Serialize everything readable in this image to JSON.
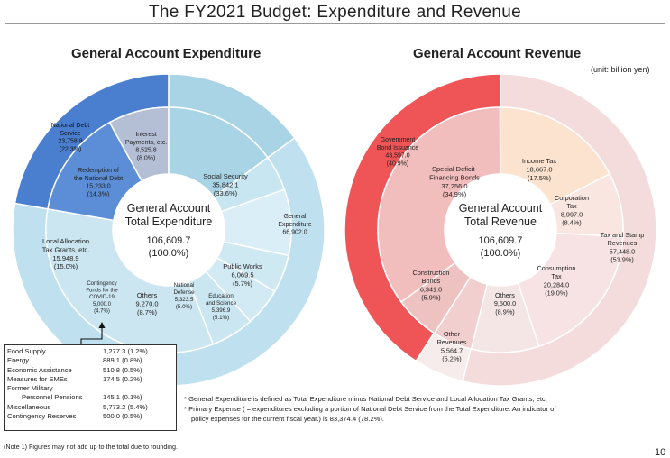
{
  "title": "The FY2021 Budget: Expenditure and Revenue",
  "unit": "(unit: billion yen)",
  "chart_data": [
    {
      "type": "pie",
      "title": "General Account Expenditure",
      "center_label": [
        "General Account",
        "Total Expenditure",
        "106,609.7",
        "(100.0%)"
      ],
      "outer": [
        {
          "label": "National Debt Service",
          "value": 23758.8
        },
        {
          "label": "Local Allocation Tax Grants, etc.",
          "value": 15948.9
        },
        {
          "label": "General Expenditure",
          "value": 66902.0
        }
      ],
      "inner": [
        {
          "label": "Redemption of the National Debt",
          "value": 15233.0
        },
        {
          "label": "Interest Payments, etc.",
          "value": 8525.8
        },
        {
          "label": "Local Allocation Tax Grants, etc.",
          "value": 15948.9
        },
        {
          "label": "Contingency Funds for the COVID-19",
          "value": 5000.0
        },
        {
          "label": "Others",
          "value": 9270.0
        },
        {
          "label": "National Defense",
          "value": 5323.5
        },
        {
          "label": "Education and Science",
          "value": 5396.9
        },
        {
          "label": "Public Works",
          "value": 6069.5
        },
        {
          "label": "Social Security",
          "value": 35842.1
        }
      ],
      "labels": {
        "nds": [
          "National Debt",
          "Service",
          "23,758.8",
          "(22.3%)"
        ],
        "ip": [
          "Interest",
          "Payments, etc.",
          "8,525.8",
          "(8.0%)"
        ],
        "rnd": [
          "Redemption of",
          "the National Debt",
          "15,233.0",
          "(14.3%)"
        ],
        "ss": [
          "Social Security",
          "35,842.1",
          "(33.6%)"
        ],
        "ge": [
          "General",
          "Expenditure",
          "66,902.0"
        ],
        "lat": [
          "Local Allocation",
          "Tax Grants, etc.",
          "15,948.9",
          "(15.0%)"
        ],
        "pw": [
          "Public Works",
          "6,069.5",
          "(5.7%)"
        ],
        "cf": [
          "Contingency",
          "Funds for the",
          "COVID-19",
          "5,000.0",
          "(4.7%)"
        ],
        "oth": [
          "Others",
          "9,270.0",
          "(8.7%)"
        ],
        "nd": [
          "National",
          "Defense",
          "5,323.5",
          "(5.0%)"
        ],
        "es": [
          "Education",
          "and Science",
          "5,396.9",
          "(5.1%)"
        ]
      }
    },
    {
      "type": "pie",
      "title": "General Account Revenue",
      "center_label": [
        "General Account",
        "Total Revenue",
        "106,609.7",
        "(100.0%)"
      ],
      "outer": [
        {
          "label": "Government Bond Issuance",
          "value": 43597.0
        },
        {
          "label": "Tax and Stamp Revenues",
          "value": 57448.0
        },
        {
          "label": "Other Revenues",
          "value": 5564.7
        }
      ],
      "inner": [
        {
          "label": "Special Deficit-Financing Bonds",
          "value": 37256.0
        },
        {
          "label": "Income Tax",
          "value": 18667.0
        },
        {
          "label": "Corporation Tax",
          "value": 8997.0
        },
        {
          "label": "Consumption Tax",
          "value": 20284.0
        },
        {
          "label": "Others",
          "value": 9500.0
        },
        {
          "label": "Other Revenues",
          "value": 5564.7
        },
        {
          "label": "Construction Bonds",
          "value": 6341.0
        }
      ],
      "labels": {
        "gbi": [
          "Government",
          "Bond Issuance",
          "43,597.0",
          "(40.9%)"
        ],
        "sdf": [
          "Special Deficit-",
          "Financing Bonds",
          "37,256.0",
          "(34.9%)"
        ],
        "it": [
          "Income Tax",
          "18,667.0",
          "(17.5%)"
        ],
        "ct": [
          "Corporation",
          "Tax",
          "8,997.0",
          "(8.4%)"
        ],
        "tsr": [
          "Tax and Stamp",
          "Revenues",
          "57,448.0",
          "(53.9%)"
        ],
        "cb": [
          "Construction",
          "Bonds",
          "6,341.0",
          "(5.9%)"
        ],
        "cns": [
          "Consumption",
          "Tax",
          "20,284.0",
          "(19.0%)"
        ],
        "oth": [
          "Others",
          "9,500.0",
          "(8.9%)"
        ],
        "orv": [
          "Other",
          "Revenues",
          "5,564.7",
          "(5.2%)"
        ]
      }
    }
  ],
  "breakdown": [
    {
      "name": "Food Supply",
      "value": "1,277.3 (1.2%)"
    },
    {
      "name": "Energy",
      "value": "889.1 (0.8%)"
    },
    {
      "name": "Economic Assistance",
      "value": "510.8 (0.5%)"
    },
    {
      "name": "Measures for SMEs",
      "value": "174.5 (0.2%)"
    },
    {
      "name": "Former Military",
      "value": ""
    },
    {
      "name": "Personnel Pensions",
      "value": "145.1 (0.1%)"
    },
    {
      "name": "Miscellaneous",
      "value": "5,773.2 (5.4%)"
    },
    {
      "name": "Contingency Reserves",
      "value": "500.0 (0.5%)"
    }
  ],
  "notes": [
    "* General Expenditure is defined as Total Expenditure minus National Debt Service and Local Allocation Tax Grants, etc.",
    "* Primary Expense ( = expenditures excluding a portion of National Debt Service from the Total Expenditure. An indicator of",
    "policy expenses for the current fiscal year.) is 83,374.4 (78.2%).",
    "(Note 1) Figures may not add up to the total due to rounding."
  ],
  "page_number": "10",
  "colors": {
    "exp_nds": "#4a7fd0",
    "exp_nds_inner": "#5b8ed6",
    "exp_lat": "#a9d4e6",
    "exp_ge": "#bfe0ee",
    "exp_ge_dark": "#8fc6dd",
    "rev_gbi": "#ef5457",
    "rev_tax": "#f4dcdc",
    "rev_inner_pink": "#f2bdbd",
    "rev_it": "#fbe3cf",
    "rev_other": "#f7ecec"
  }
}
